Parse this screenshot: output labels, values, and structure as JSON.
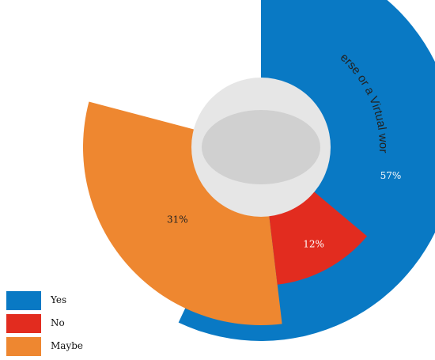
{
  "chart_data": {
    "type": "pie",
    "title": "Does a metaverse or a Virtual world excite you?",
    "categories": [
      "Yes",
      "No",
      "Maybe"
    ],
    "values": [
      57,
      12,
      31
    ],
    "labels": [
      "57%",
      "12%",
      "31%"
    ],
    "colors": [
      "#0979c4",
      "#e22c1f",
      "#ee8730"
    ],
    "legend_position": "bottom-left"
  },
  "legend": [
    {
      "label": "Yes",
      "color": "#0979c4"
    },
    {
      "label": "No",
      "color": "#e22c1f"
    },
    {
      "label": "Maybe",
      "color": "#ee8730"
    }
  ]
}
